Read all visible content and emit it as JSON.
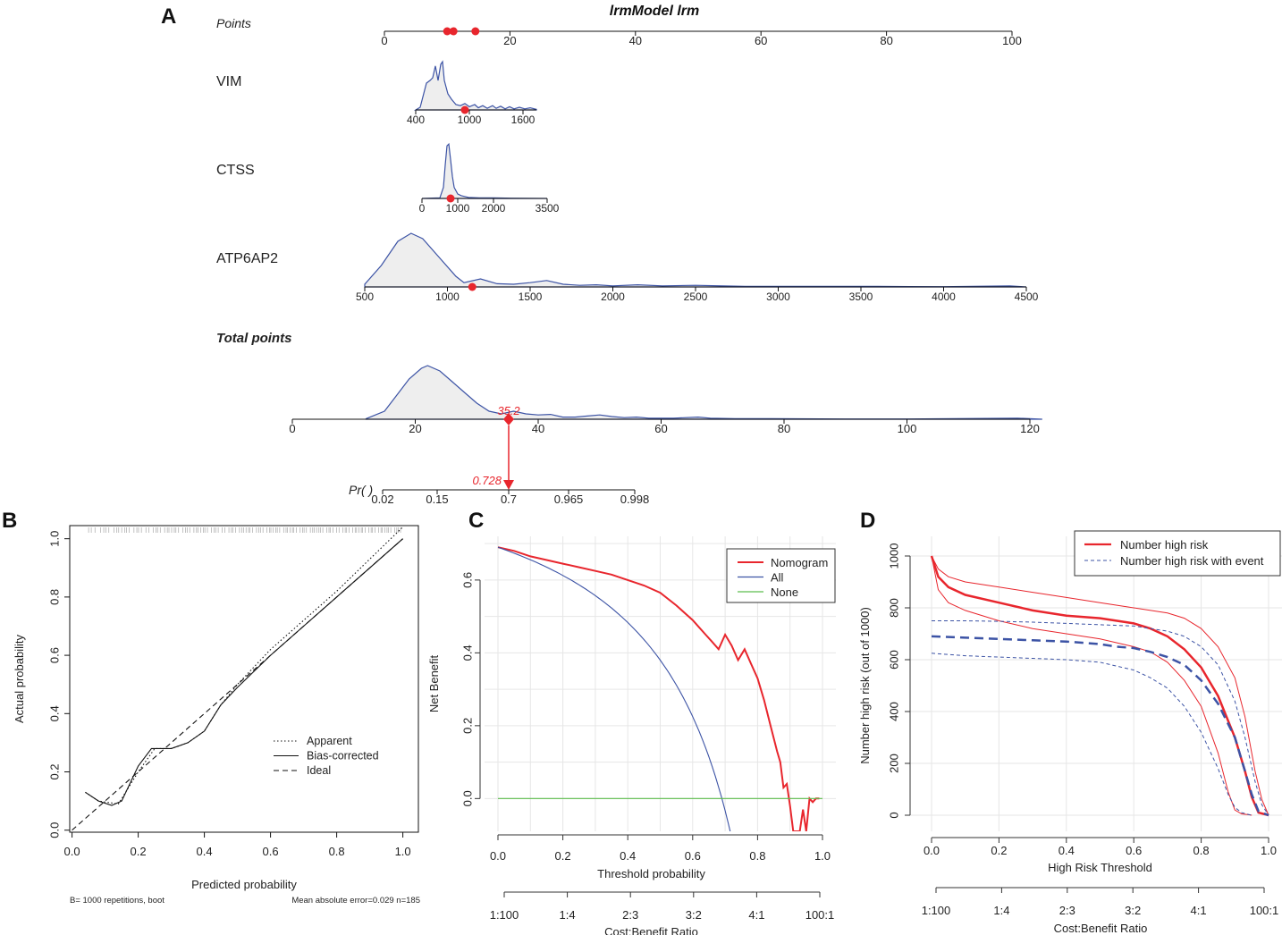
{
  "colors": {
    "red": "#e8262d",
    "blue": "#3c53a5",
    "green": "#5cbd4d",
    "black": "#1a1a1a",
    "grid": "#e6e6e6",
    "fill": "#eeeeee"
  },
  "panel_letters": [
    "A",
    "B",
    "C",
    "D"
  ],
  "chart_data": [
    {
      "id": "nomogram",
      "type": "nomogram",
      "title": "lrmModel lrm",
      "rows": [
        {
          "label": "Points",
          "range": [
            0,
            100
          ],
          "ticks": [
            0,
            20,
            40,
            60,
            80,
            100
          ],
          "markers": [
            10,
            11,
            14.5
          ]
        },
        {
          "label": "VIM",
          "range": [
            400,
            1750
          ],
          "ticks": [
            400,
            1000,
            1600
          ],
          "marker": 950,
          "density": [
            [
              400,
              0
            ],
            [
              450,
              0.05
            ],
            [
              520,
              0.5
            ],
            [
              560,
              0.55
            ],
            [
              590,
              0.6
            ],
            [
              620,
              0.82
            ],
            [
              650,
              0.55
            ],
            [
              680,
              0.85
            ],
            [
              700,
              0.9
            ],
            [
              720,
              0.55
            ],
            [
              760,
              0.3
            ],
            [
              800,
              0.2
            ],
            [
              850,
              0.1
            ],
            [
              900,
              0.08
            ],
            [
              950,
              0.12
            ],
            [
              1000,
              0.06
            ],
            [
              1060,
              0.1
            ],
            [
              1100,
              0.04
            ],
            [
              1150,
              0.08
            ],
            [
              1200,
              0.03
            ],
            [
              1260,
              0.08
            ],
            [
              1300,
              0.03
            ],
            [
              1350,
              0.07
            ],
            [
              1400,
              0.02
            ],
            [
              1450,
              0.06
            ],
            [
              1500,
              0.02
            ],
            [
              1560,
              0.05
            ],
            [
              1620,
              0.02
            ],
            [
              1680,
              0.04
            ],
            [
              1750,
              0.01
            ]
          ]
        },
        {
          "label": "CTSS",
          "range": [
            0,
            3500
          ],
          "ticks": [
            0,
            1000,
            2000,
            3500
          ],
          "marker": 800,
          "density": [
            [
              0,
              0
            ],
            [
              500,
              0.01
            ],
            [
              600,
              0.2
            ],
            [
              650,
              0.6
            ],
            [
              700,
              0.95
            ],
            [
              750,
              0.98
            ],
            [
              800,
              0.7
            ],
            [
              850,
              0.4
            ],
            [
              900,
              0.2
            ],
            [
              1000,
              0.08
            ],
            [
              1100,
              0.05
            ],
            [
              1300,
              0.02
            ],
            [
              1600,
              0.01
            ],
            [
              2000,
              0.01
            ],
            [
              2500,
              0.005
            ],
            [
              3000,
              0.003
            ],
            [
              3500,
              0
            ]
          ]
        },
        {
          "label": "ATP6AP2",
          "range": [
            500,
            4500
          ],
          "ticks": [
            500,
            1000,
            1500,
            2000,
            2500,
            3000,
            3500,
            4000,
            4500
          ],
          "marker": 1150,
          "density": [
            [
              500,
              0.05
            ],
            [
              600,
              0.4
            ],
            [
              700,
              0.85
            ],
            [
              780,
              1.0
            ],
            [
              850,
              0.9
            ],
            [
              950,
              0.55
            ],
            [
              1050,
              0.2
            ],
            [
              1100,
              0.08
            ],
            [
              1200,
              0.15
            ],
            [
              1300,
              0.06
            ],
            [
              1400,
              0.05
            ],
            [
              1500,
              0.08
            ],
            [
              1600,
              0.12
            ],
            [
              1700,
              0.05
            ],
            [
              1800,
              0.03
            ],
            [
              1900,
              0.04
            ],
            [
              2000,
              0.02
            ],
            [
              2150,
              0.04
            ],
            [
              2300,
              0.02
            ],
            [
              2500,
              0.03
            ],
            [
              2800,
              0.01
            ],
            [
              3200,
              0.01
            ],
            [
              3600,
              0.01
            ],
            [
              4000,
              0.005
            ],
            [
              4400,
              0.02
            ],
            [
              4500,
              0
            ]
          ]
        },
        {
          "label": "Total points",
          "range": [
            0,
            120
          ],
          "ticks": [
            0,
            20,
            40,
            60,
            80,
            100,
            120
          ],
          "density": [
            [
              12,
              0.01
            ],
            [
              15,
              0.15
            ],
            [
              17,
              0.45
            ],
            [
              19,
              0.75
            ],
            [
              21,
              0.95
            ],
            [
              22,
              1.0
            ],
            [
              24,
              0.9
            ],
            [
              26,
              0.7
            ],
            [
              28,
              0.5
            ],
            [
              30,
              0.3
            ],
            [
              32,
              0.15
            ],
            [
              34,
              0.1
            ],
            [
              36,
              0.15
            ],
            [
              38,
              0.1
            ],
            [
              40,
              0.08
            ],
            [
              42,
              0.09
            ],
            [
              44,
              0.04
            ],
            [
              46,
              0.04
            ],
            [
              48,
              0.06
            ],
            [
              50,
              0.08
            ],
            [
              52,
              0.05
            ],
            [
              54,
              0.03
            ],
            [
              56,
              0.04
            ],
            [
              58,
              0.02
            ],
            [
              62,
              0.02
            ],
            [
              66,
              0.04
            ],
            [
              68,
              0.02
            ],
            [
              72,
              0.01
            ],
            [
              78,
              0.01
            ],
            [
              90,
              0.005
            ],
            [
              100,
              0.005
            ],
            [
              118,
              0.02
            ],
            [
              122,
              0
            ]
          ]
        },
        {
          "label": "Pr( )",
          "ticks": [
            0.02,
            0.15,
            0.7,
            0.965,
            0.998
          ]
        }
      ],
      "total_value": 35.2,
      "total_label": "35.2",
      "prob_label": "0.728"
    },
    {
      "id": "calibration",
      "type": "line",
      "xlabel": "Predicted probability",
      "ylabel": "Actual probability",
      "xlim": [
        0,
        1
      ],
      "ylim": [
        0,
        1
      ],
      "xticks": [
        0.0,
        0.2,
        0.4,
        0.6,
        0.8,
        1.0
      ],
      "yticks": [
        0.0,
        0.2,
        0.4,
        0.6,
        0.8,
        1.0
      ],
      "footnote_left": "B= 1000 repetitions, boot",
      "footnote_right": "Mean absolute error=0.029 n=185",
      "legend": [
        "Apparent",
        "Bias-corrected",
        "Ideal"
      ],
      "series": [
        {
          "name": "Apparent",
          "style": "dotted",
          "x": [
            0.04,
            0.08,
            0.14,
            0.2,
            0.25,
            0.3,
            0.35,
            0.4,
            0.45,
            0.5,
            0.6,
            0.7,
            0.8,
            0.9,
            1.0
          ],
          "y": [
            0.13,
            0.1,
            0.09,
            0.2,
            0.28,
            0.28,
            0.3,
            0.34,
            0.43,
            0.5,
            0.62,
            0.72,
            0.82,
            0.93,
            1.04
          ]
        },
        {
          "name": "Bias-corrected",
          "style": "solid",
          "x": [
            0.04,
            0.08,
            0.12,
            0.15,
            0.2,
            0.24,
            0.27,
            0.3,
            0.35,
            0.4,
            0.45,
            0.5,
            0.6,
            0.7,
            0.8,
            0.9,
            1.0
          ],
          "y": [
            0.13,
            0.1,
            0.085,
            0.1,
            0.22,
            0.28,
            0.28,
            0.28,
            0.3,
            0.34,
            0.43,
            0.49,
            0.6,
            0.7,
            0.8,
            0.9,
            1.0
          ]
        },
        {
          "name": "Ideal",
          "style": "dashed",
          "x": [
            0,
            1
          ],
          "y": [
            0,
            1
          ]
        }
      ]
    },
    {
      "id": "dca",
      "type": "line",
      "xlabel": "Threshold probability",
      "ylabel": "Net Benefit",
      "xlim": [
        0,
        1
      ],
      "ylim": [
        -0.09,
        0.72
      ],
      "xticks": [
        0.0,
        0.2,
        0.4,
        0.6,
        0.8,
        1.0
      ],
      "yticks": [
        0.0,
        0.2,
        0.4,
        0.6
      ],
      "ratio_title": "Cost:Benefit Ratio",
      "ratio_ticks": [
        "1:100",
        "1:4",
        "2:3",
        "3:2",
        "4:1",
        "100:1"
      ],
      "legend": [
        "Nomogram",
        "All",
        "None"
      ],
      "series": [
        {
          "name": "Nomogram",
          "color": "red",
          "x": [
            0,
            0.05,
            0.1,
            0.15,
            0.2,
            0.25,
            0.3,
            0.35,
            0.4,
            0.45,
            0.5,
            0.55,
            0.6,
            0.62,
            0.64,
            0.66,
            0.68,
            0.7,
            0.72,
            0.74,
            0.76,
            0.78,
            0.8,
            0.82,
            0.84,
            0.86,
            0.87,
            0.88,
            0.89,
            0.9,
            0.91,
            0.92,
            0.93,
            0.94,
            0.95,
            0.96,
            0.97,
            0.98,
            0.99
          ],
          "y": [
            0.69,
            0.68,
            0.665,
            0.655,
            0.645,
            0.635,
            0.625,
            0.615,
            0.6,
            0.585,
            0.565,
            0.53,
            0.49,
            0.47,
            0.45,
            0.43,
            0.41,
            0.45,
            0.42,
            0.38,
            0.41,
            0.37,
            0.33,
            0.27,
            0.2,
            0.13,
            0.1,
            0.03,
            0.04,
            -0.02,
            -0.09,
            -0.09,
            -0.09,
            -0.03,
            -0.09,
            0.0,
            -0.01,
            0.0,
            0.0
          ]
        },
        {
          "name": "All",
          "color": "blue",
          "formula": "all"
        },
        {
          "name": "None",
          "color": "green",
          "x": [
            0,
            1
          ],
          "y": [
            0,
            0
          ]
        }
      ]
    },
    {
      "id": "clinical_impact",
      "type": "line",
      "xlabel": "High Risk Threshold",
      "ylabel": "Number high risk (out of 1000)",
      "xlim": [
        0,
        1
      ],
      "ylim": [
        0,
        1000
      ],
      "xticks": [
        0.0,
        0.2,
        0.4,
        0.6,
        0.8,
        1.0
      ],
      "yticks": [
        0,
        200,
        400,
        600,
        800,
        1000
      ],
      "ratio_title": "Cost:Benefit Ratio",
      "ratio_ticks": [
        "1:100",
        "1:4",
        "2:3",
        "3:2",
        "4:1",
        "100:1"
      ],
      "legend": [
        "Number high risk",
        "Number high risk with event"
      ],
      "series": [
        {
          "name": "Number high risk",
          "color": "red",
          "width": 2.5,
          "x": [
            0,
            0.02,
            0.05,
            0.1,
            0.2,
            0.3,
            0.4,
            0.5,
            0.6,
            0.65,
            0.7,
            0.75,
            0.8,
            0.85,
            0.9,
            0.93,
            0.95,
            0.97,
            1.0
          ],
          "y": [
            1000,
            920,
            880,
            850,
            820,
            790,
            770,
            760,
            740,
            720,
            690,
            640,
            570,
            460,
            300,
            170,
            70,
            10,
            0
          ]
        },
        {
          "name": "upper",
          "color": "red",
          "width": 1,
          "x": [
            0,
            0.02,
            0.05,
            0.1,
            0.2,
            0.3,
            0.4,
            0.5,
            0.6,
            0.7,
            0.75,
            0.8,
            0.85,
            0.9,
            0.93,
            0.96,
            0.98,
            1.0
          ],
          "y": [
            1000,
            950,
            920,
            900,
            880,
            860,
            840,
            820,
            800,
            780,
            760,
            720,
            650,
            530,
            380,
            170,
            60,
            0
          ]
        },
        {
          "name": "lower",
          "color": "red",
          "width": 1,
          "x": [
            0,
            0.02,
            0.05,
            0.1,
            0.2,
            0.3,
            0.4,
            0.5,
            0.6,
            0.65,
            0.7,
            0.75,
            0.8,
            0.85,
            0.88,
            0.9,
            0.92,
            0.94,
            0.95
          ],
          "y": [
            1000,
            870,
            820,
            790,
            750,
            720,
            700,
            680,
            650,
            630,
            590,
            520,
            420,
            240,
            90,
            20,
            5,
            2,
            0
          ]
        },
        {
          "name": "Number high risk with event",
          "color": "blue",
          "width": 2.5,
          "dash": "10,6",
          "x": [
            0,
            0.1,
            0.2,
            0.3,
            0.4,
            0.5,
            0.55,
            0.6,
            0.65,
            0.7,
            0.75,
            0.8,
            0.85,
            0.9,
            0.93,
            0.95,
            0.97,
            1.0
          ],
          "y": [
            690,
            685,
            680,
            675,
            670,
            660,
            650,
            645,
            630,
            610,
            580,
            520,
            430,
            300,
            170,
            80,
            15,
            0
          ]
        },
        {
          "name": "event upper",
          "color": "blue",
          "width": 1,
          "dash": "4,3",
          "x": [
            0,
            0.1,
            0.2,
            0.3,
            0.4,
            0.5,
            0.6,
            0.65,
            0.7,
            0.75,
            0.8,
            0.85,
            0.9,
            0.93,
            0.96,
            0.98,
            1.0
          ],
          "y": [
            750,
            750,
            748,
            745,
            740,
            735,
            730,
            720,
            710,
            690,
            650,
            580,
            440,
            300,
            130,
            40,
            0
          ]
        },
        {
          "name": "event lower",
          "color": "blue",
          "width": 1,
          "dash": "4,3",
          "x": [
            0,
            0.1,
            0.2,
            0.3,
            0.4,
            0.5,
            0.6,
            0.65,
            0.7,
            0.75,
            0.8,
            0.85,
            0.88,
            0.9,
            0.92,
            0.94,
            0.95
          ],
          "y": [
            625,
            615,
            610,
            605,
            600,
            590,
            560,
            530,
            490,
            420,
            320,
            180,
            80,
            30,
            10,
            3,
            0
          ]
        }
      ]
    }
  ]
}
